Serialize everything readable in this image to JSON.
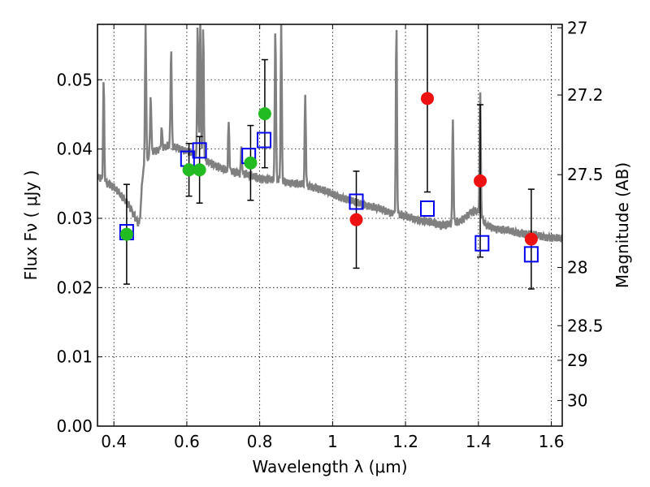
{
  "chart_data": {
    "type": "scatter",
    "xlabel": "Wavelength  λ (μm)",
    "ylabel": "Flux  Fν  ( μJy )",
    "ylabel_right": "Magnitude (AB)",
    "xlim": [
      0.355,
      1.63
    ],
    "ylim": [
      0.0,
      0.058
    ],
    "grid": true,
    "x_ticks": [
      "0.4",
      "0.6",
      "0.8",
      "1",
      "1.2",
      "1.4",
      "1.6"
    ],
    "y_ticks": [
      "0.00",
      "0.01",
      "0.02",
      "0.03",
      "0.04",
      "0.05"
    ],
    "right_ticks": [
      {
        "label": "27",
        "flux": 0.0575
      },
      {
        "label": "27.2",
        "flux": 0.0478
      },
      {
        "label": "27.5",
        "flux": 0.0363
      },
      {
        "label": "28",
        "flux": 0.0229
      },
      {
        "label": "28.5",
        "flux": 0.0145
      },
      {
        "label": "29",
        "flux": 0.0095
      },
      {
        "label": "30",
        "flux": 0.0037
      }
    ],
    "colors": {
      "sed": "#808080",
      "green": "#22bb22",
      "red": "#ee1111",
      "model_box": "#0000ee",
      "errorbar": "#000000"
    },
    "sed_continuum": [
      [
        0.355,
        0.036
      ],
      [
        0.4,
        0.0345
      ],
      [
        0.44,
        0.032
      ],
      [
        0.47,
        0.029
      ],
      [
        0.48,
        0.037
      ],
      [
        0.5,
        0.0395
      ],
      [
        0.55,
        0.0405
      ],
      [
        0.6,
        0.0398
      ],
      [
        0.65,
        0.0385
      ],
      [
        0.7,
        0.037
      ],
      [
        0.75,
        0.0365
      ],
      [
        0.8,
        0.0358
      ],
      [
        0.85,
        0.0355
      ],
      [
        0.9,
        0.035
      ],
      [
        0.95,
        0.0345
      ],
      [
        1.0,
        0.0335
      ],
      [
        1.05,
        0.0325
      ],
      [
        1.1,
        0.0318
      ],
      [
        1.15,
        0.031
      ],
      [
        1.2,
        0.0303
      ],
      [
        1.25,
        0.0296
      ],
      [
        1.3,
        0.029
      ],
      [
        1.35,
        0.0295
      ],
      [
        1.38,
        0.031
      ],
      [
        1.4,
        0.031
      ],
      [
        1.42,
        0.029
      ],
      [
        1.45,
        0.0285
      ],
      [
        1.5,
        0.028
      ],
      [
        1.55,
        0.0276
      ],
      [
        1.6,
        0.0272
      ],
      [
        1.63,
        0.027
      ]
    ],
    "sed_lines": [
      {
        "x": 0.372,
        "peak": 0.05
      },
      {
        "x": 0.487,
        "peak": 0.058
      },
      {
        "x": 0.501,
        "peak": 0.048
      },
      {
        "x": 0.531,
        "peak": 0.043
      },
      {
        "x": 0.557,
        "peak": 0.055
      },
      {
        "x": 0.63,
        "peak": 0.058
      },
      {
        "x": 0.637,
        "peak": 0.058
      },
      {
        "x": 0.645,
        "peak": 0.058
      },
      {
        "x": 0.715,
        "peak": 0.044
      },
      {
        "x": 0.75,
        "peak": 0.04
      },
      {
        "x": 0.843,
        "peak": 0.058
      },
      {
        "x": 0.859,
        "peak": 0.058
      },
      {
        "x": 0.925,
        "peak": 0.048
      },
      {
        "x": 1.175,
        "peak": 0.058
      },
      {
        "x": 1.33,
        "peak": 0.0445
      },
      {
        "x": 1.405,
        "peak": 0.0475
      }
    ],
    "detections": [
      {
        "x": 0.435,
        "y": 0.0277,
        "yerr": 0.0072
      },
      {
        "x": 0.606,
        "y": 0.037,
        "yerr": 0.0038
      },
      {
        "x": 0.635,
        "y": 0.037,
        "yerr": 0.0048
      },
      {
        "x": 0.775,
        "y": 0.038,
        "yerr": 0.0054
      },
      {
        "x": 0.814,
        "y": 0.0451,
        "yerr": 0.0078
      }
    ],
    "ir_points": [
      {
        "x": 1.065,
        "y": 0.0298,
        "yerr": 0.007
      },
      {
        "x": 1.26,
        "y": 0.0473,
        "yerr": 0.0135
      },
      {
        "x": 1.405,
        "y": 0.0354,
        "yerr": 0.011
      },
      {
        "x": 1.545,
        "y": 0.027,
        "yerr": 0.0072
      }
    ],
    "model_photometry": [
      {
        "x": 0.435,
        "y": 0.028
      },
      {
        "x": 0.602,
        "y": 0.0386
      },
      {
        "x": 0.635,
        "y": 0.0398
      },
      {
        "x": 0.77,
        "y": 0.039
      },
      {
        "x": 0.812,
        "y": 0.0413
      },
      {
        "x": 1.065,
        "y": 0.0324
      },
      {
        "x": 1.26,
        "y": 0.0314
      },
      {
        "x": 1.41,
        "y": 0.0264
      },
      {
        "x": 1.545,
        "y": 0.0248
      }
    ]
  }
}
